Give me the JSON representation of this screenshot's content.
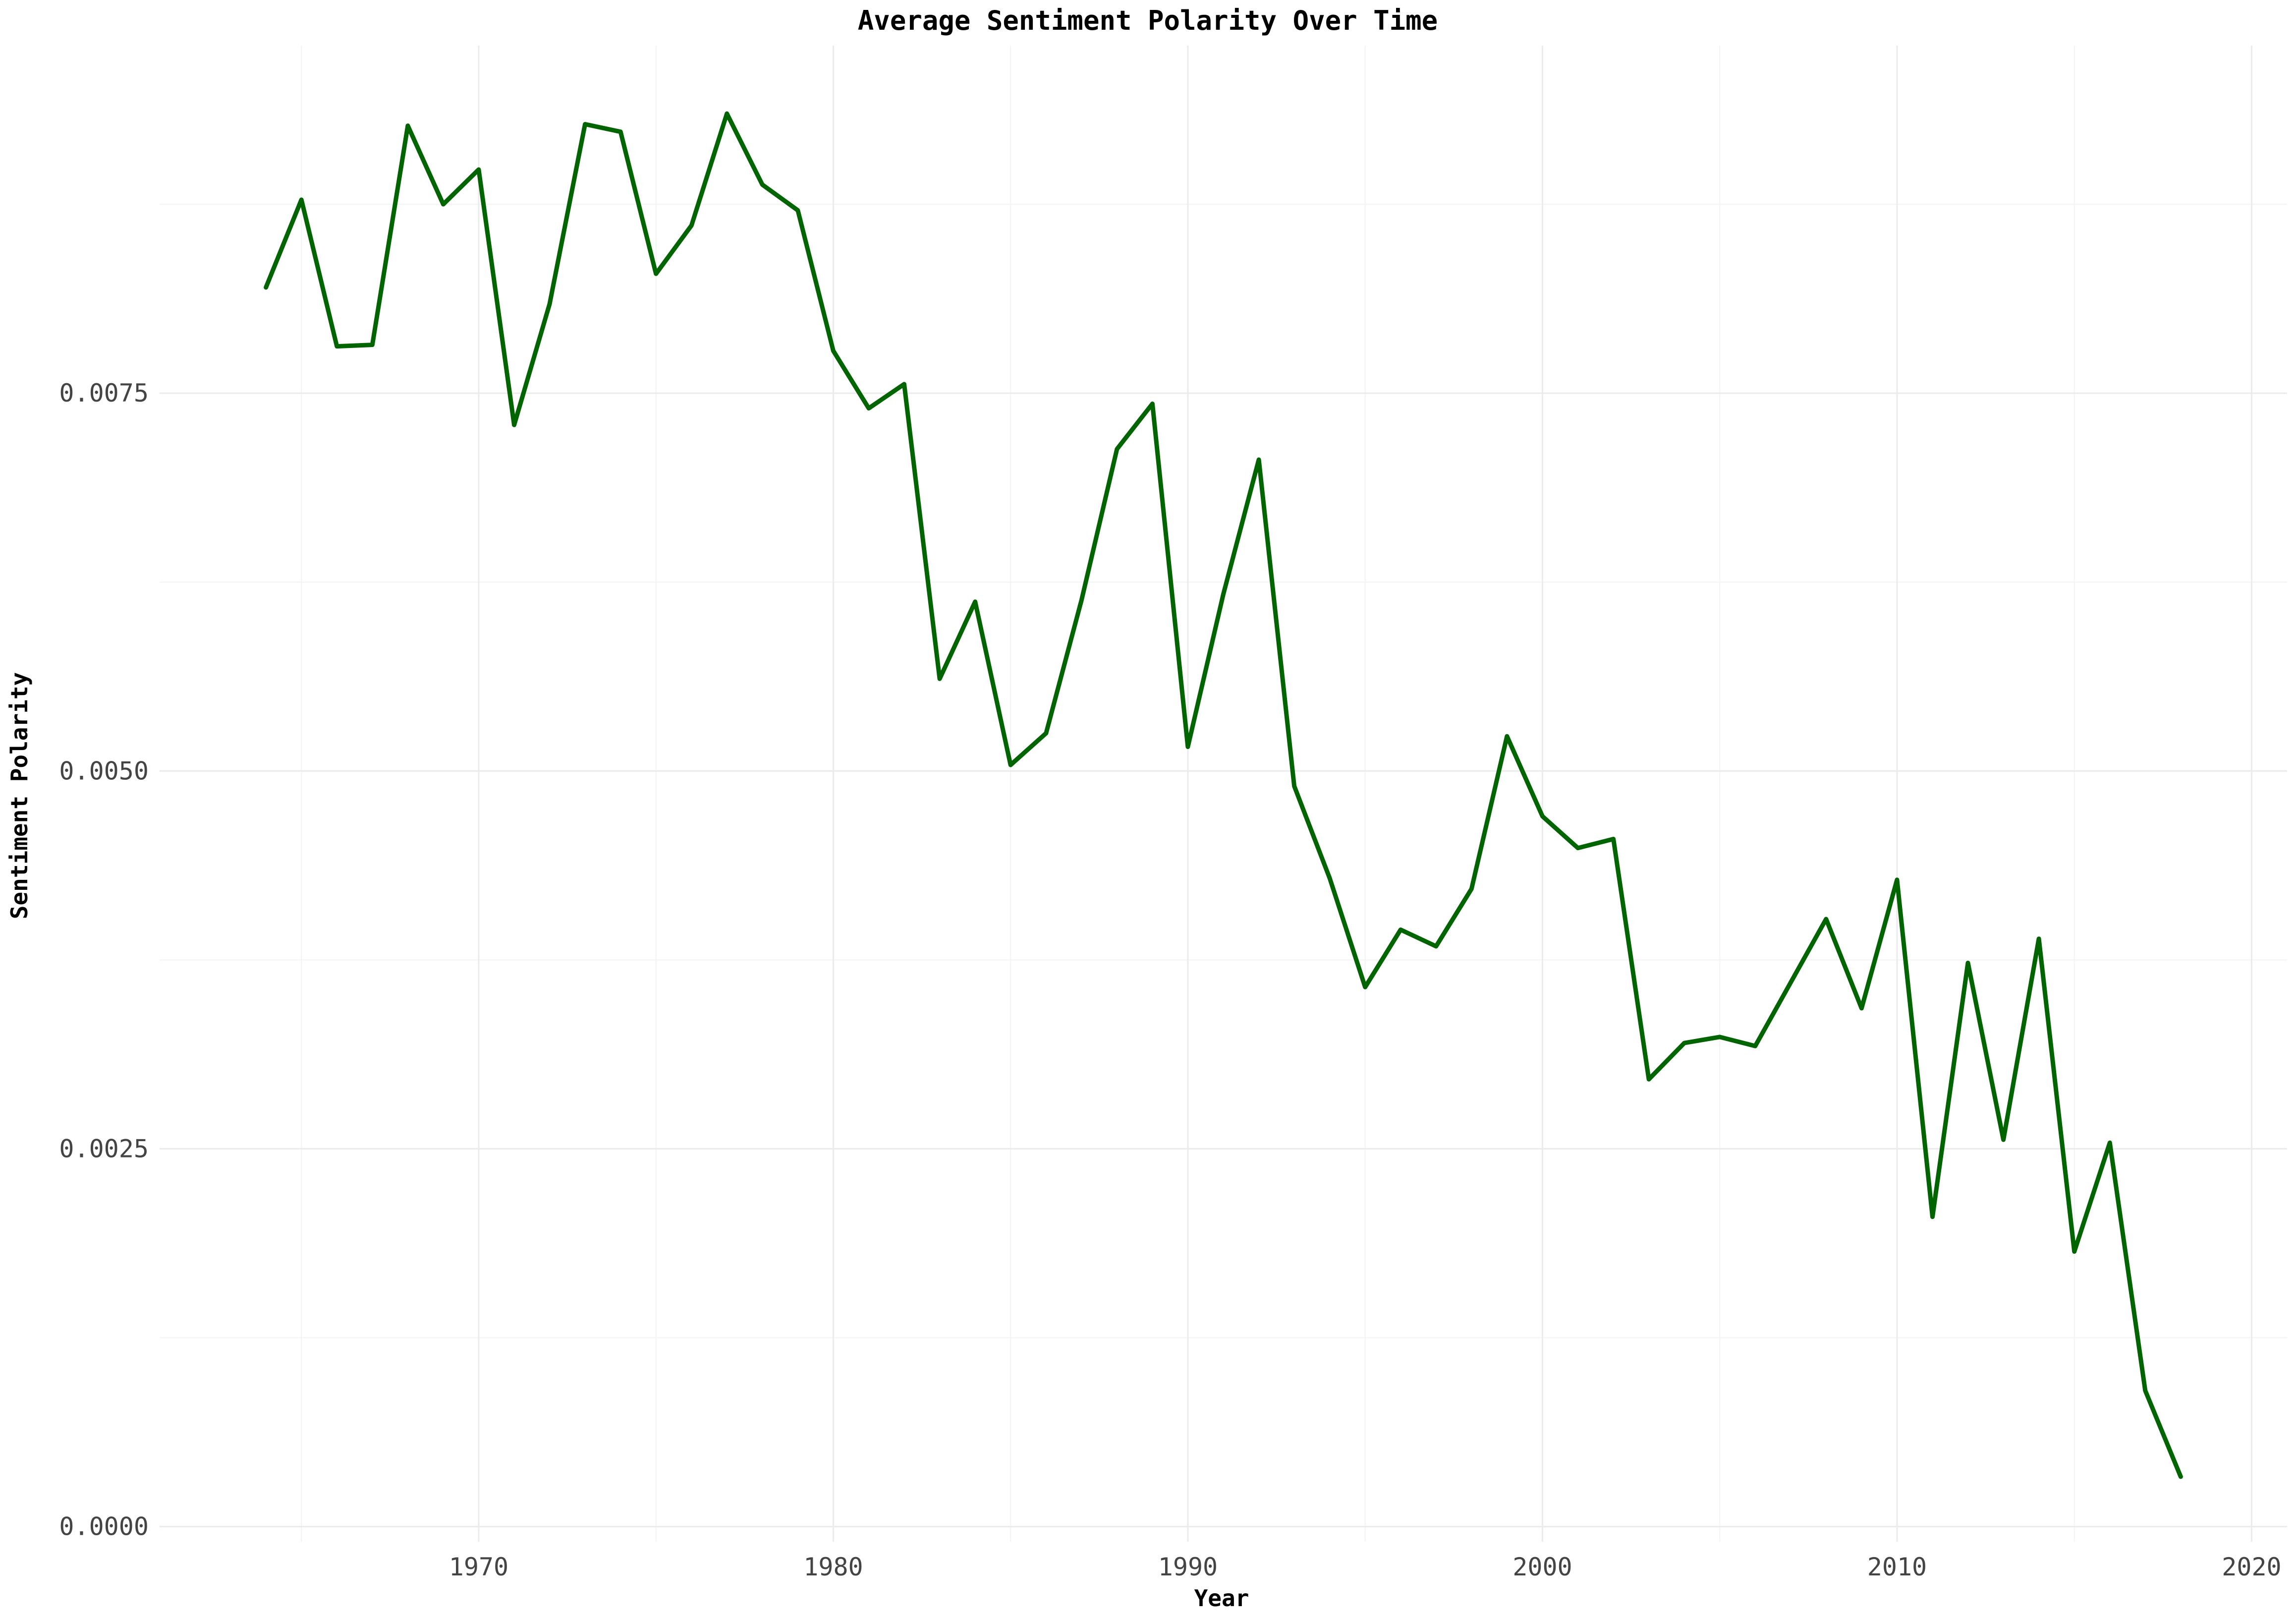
{
  "chart_data": {
    "type": "line",
    "title": "Average Sentiment Polarity Over Time",
    "xlabel": "Year",
    "ylabel": "Sentiment Polarity",
    "xlim": [
      1961,
      2021
    ],
    "ylim": [
      -0.0001,
      0.0098
    ],
    "x_ticks": [
      1970,
      1980,
      1990,
      2000,
      2010,
      2020
    ],
    "y_ticks": [
      0.0,
      0.0025,
      0.005,
      0.0075
    ],
    "y_tick_labels": [
      "0.0000",
      "0.0025",
      "0.0050",
      "0.0075"
    ],
    "grid": true,
    "series": [
      {
        "color": "#006400",
        "x": [
          1964,
          1965,
          1966,
          1967,
          1968,
          1969,
          1970,
          1971,
          1972,
          1973,
          1974,
          1975,
          1976,
          1977,
          1978,
          1979,
          1980,
          1981,
          1982,
          1983,
          1984,
          1985,
          1986,
          1987,
          1988,
          1989,
          1990,
          1991,
          1992,
          1993,
          1994,
          1995,
          1996,
          1997,
          1998,
          1999,
          2000,
          2001,
          2002,
          2003,
          2004,
          2005,
          2006,
          2007,
          2008,
          2009,
          2010,
          2011,
          2012,
          2013,
          2014,
          2015,
          2016,
          2017,
          2018
        ],
        "y": [
          0.0082,
          0.00878,
          0.00781,
          0.00782,
          0.00927,
          0.00875,
          0.00898,
          0.00729,
          0.00809,
          0.00928,
          0.00923,
          0.00829,
          0.00861,
          0.00935,
          0.00888,
          0.00871,
          0.00778,
          0.0074,
          0.00756,
          0.00561,
          0.00612,
          0.00504,
          0.00525,
          0.00613,
          0.00713,
          0.00743,
          0.00516,
          0.00617,
          0.00706,
          0.0049,
          0.00429,
          0.00357,
          0.00395,
          0.00384,
          0.00422,
          0.00523,
          0.0047,
          0.00449,
          0.00455,
          0.00296,
          0.0032,
          0.00324,
          0.00318,
          0.0036,
          0.00402,
          0.00343,
          0.00428,
          0.00205,
          0.00373,
          0.00256,
          0.00389,
          0.00182,
          0.00254,
          0.0009,
          0.00033
        ]
      }
    ]
  }
}
